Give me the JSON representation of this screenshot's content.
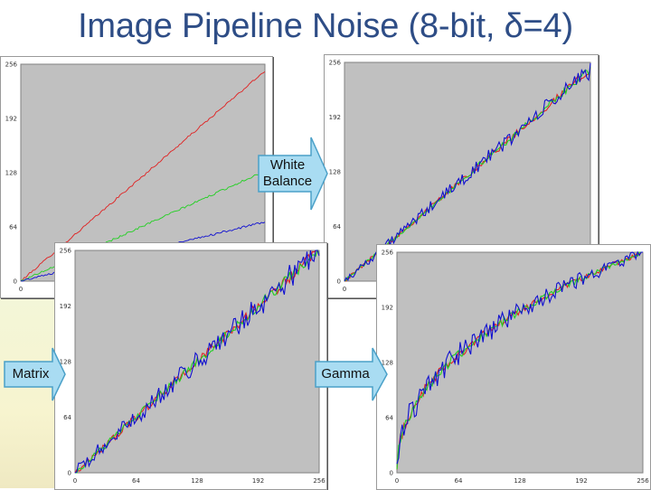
{
  "title": "Image Pipeline Noise (8-bit, δ=4)",
  "arrows": {
    "white_balance_line1": "White",
    "white_balance_line2": "Balance",
    "matrix": "Matrix",
    "gamma": "Gamma"
  },
  "colors": {
    "plot_bg": "#c0c0c0",
    "red": "#e02020",
    "green": "#20d020",
    "blue": "#1010d0",
    "arrow_fill": "#a9dcf2",
    "arrow_stroke": "#4aa0c8",
    "title": "#2e4d86"
  },
  "chart_data": [
    {
      "id": "raw",
      "type": "line",
      "xlim": [
        0,
        256
      ],
      "ylim": [
        0,
        256
      ],
      "x_ticks": [
        "0"
      ],
      "y_ticks": [
        "0",
        "64",
        "128",
        "192",
        "256"
      ],
      "series": [
        {
          "color": "red",
          "x": [
            0,
            256
          ],
          "y": [
            0,
            248
          ]
        },
        {
          "color": "green",
          "x": [
            0,
            256
          ],
          "y": [
            0,
            130
          ]
        },
        {
          "color": "blue",
          "x": [
            0,
            256
          ],
          "y": [
            0,
            70
          ]
        }
      ]
    },
    {
      "id": "white_balance",
      "type": "line",
      "xlim": [
        0,
        256
      ],
      "ylim": [
        0,
        256
      ],
      "x_ticks": [
        "0"
      ],
      "y_ticks": [
        "0",
        "64",
        "128",
        "192",
        "256"
      ],
      "series": [
        {
          "color": "red",
          "x": [
            0,
            256
          ],
          "y": [
            0,
            248
          ]
        },
        {
          "color": "green",
          "x": [
            0,
            256
          ],
          "y": [
            0,
            248
          ]
        },
        {
          "color": "blue",
          "x": [
            0,
            256
          ],
          "y": [
            0,
            248
          ]
        }
      ]
    },
    {
      "id": "matrix",
      "type": "line",
      "xlim": [
        0,
        256
      ],
      "ylim": [
        0,
        256
      ],
      "x_ticks": [
        "0",
        "64",
        "128",
        "192",
        "256"
      ],
      "y_ticks": [
        "0",
        "64",
        "128",
        "192",
        "256"
      ],
      "series": [
        {
          "color": "red",
          "x": [
            0,
            256
          ],
          "y": [
            0,
            256
          ]
        },
        {
          "color": "green",
          "x": [
            0,
            256
          ],
          "y": [
            0,
            256
          ]
        },
        {
          "color": "blue",
          "x": [
            0,
            256
          ],
          "y": [
            0,
            256
          ]
        }
      ]
    },
    {
      "id": "gamma",
      "type": "line",
      "xlim": [
        0,
        256
      ],
      "ylim": [
        0,
        256
      ],
      "x_ticks": [
        "0",
        "64",
        "128",
        "192",
        "256"
      ],
      "y_ticks": [
        "0",
        "64",
        "128",
        "192",
        "256"
      ],
      "gamma": 0.45,
      "series": [
        {
          "color": "red",
          "x": [
            0,
            256
          ],
          "y": [
            0,
            256
          ]
        },
        {
          "color": "green",
          "x": [
            0,
            256
          ],
          "y": [
            0,
            256
          ]
        },
        {
          "color": "blue",
          "x": [
            0,
            256
          ],
          "y": [
            0,
            256
          ]
        }
      ]
    }
  ]
}
